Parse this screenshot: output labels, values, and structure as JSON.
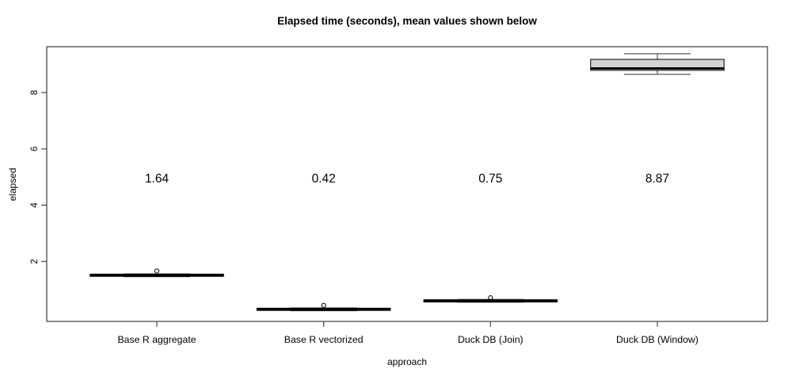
{
  "chart_data": {
    "type": "boxplot",
    "title": "Elapsed time (seconds), mean values shown below",
    "xlabel": "approach",
    "ylabel": "elapsed",
    "categories": [
      "Base R aggregate",
      "Base R vectorized",
      "Duck DB (Join)",
      "Duck DB (Window)"
    ],
    "y_ticks": [
      2,
      4,
      6,
      8
    ],
    "ylim": [
      -0.13,
      9.63
    ],
    "xlim": [
      0.34,
      4.66
    ],
    "grid": false,
    "legend": "none",
    "box_width": 0.8,
    "staple_width": 0.4,
    "mean_label_y": 4.95,
    "series": [
      {
        "name": "Base R aggregate",
        "whisker_low": 1.46,
        "q1": 1.47,
        "median": 1.51,
        "q3": 1.55,
        "whisker_high": 1.56,
        "outliers": [
          1.66
        ],
        "mean": 1.64,
        "mean_label": "1.64"
      },
      {
        "name": "Base R vectorized",
        "whisker_low": 0.25,
        "q1": 0.26,
        "median": 0.3,
        "q3": 0.34,
        "whisker_high": 0.35,
        "outliers": [
          0.44
        ],
        "mean": 0.42,
        "mean_label": "0.42"
      },
      {
        "name": "Duck DB (Join)",
        "whisker_low": 0.55,
        "q1": 0.56,
        "median": 0.6,
        "q3": 0.64,
        "whisker_high": 0.65,
        "outliers": [
          0.71
        ],
        "mean": 0.75,
        "mean_label": "0.75"
      },
      {
        "name": "Duck DB (Window)",
        "whisker_low": 8.65,
        "q1": 8.79,
        "median": 8.86,
        "q3": 9.18,
        "whisker_high": 9.38,
        "outliers": [],
        "mean": 8.87,
        "mean_label": "8.87"
      }
    ],
    "colors": {
      "box_fill": "#d3d3d3",
      "box_border": "#000000",
      "median": "#000000",
      "whisker": "#5a5a5a",
      "frame": "#4a4a4a",
      "text": "#000000"
    }
  }
}
